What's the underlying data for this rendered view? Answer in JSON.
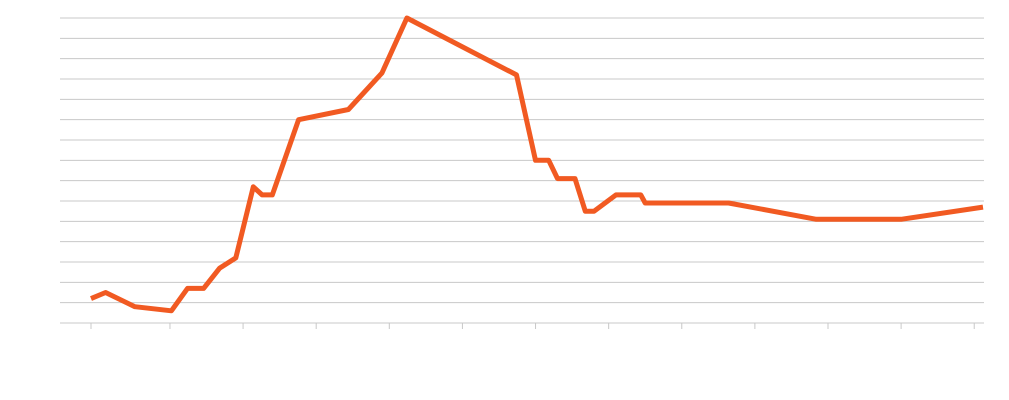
{
  "chart_data": {
    "type": "line",
    "title": "",
    "xlabel": "",
    "ylabel": "",
    "grid": true,
    "legend": "none",
    "xlim": [
      0,
      61
    ],
    "ylim": [
      0,
      15
    ],
    "y_gridline_count": 15,
    "x_tick_positions": [
      0,
      5.4,
      10.4,
      15.4,
      20.4,
      25.4,
      30.4,
      35.4,
      40.4,
      45.4,
      50.4,
      55.4,
      60.4
    ],
    "series": [
      {
        "color": "#f15a22",
        "x": [
          0,
          1,
          3,
          5.5,
          6.6,
          7.7,
          8.8,
          9.9,
          11.1,
          11.7,
          12.4,
          14.2,
          17.6,
          19.9,
          21.6,
          29.1,
          30.4,
          31.3,
          31.9,
          33.1,
          33.8,
          34.4,
          35.9,
          37.6,
          37.9,
          43.6,
          49.6,
          55.4,
          61
        ],
        "y": [
          1.2,
          1.5,
          0.8,
          0.6,
          1.7,
          1.7,
          2.7,
          3.2,
          6.7,
          6.3,
          6.3,
          10.0,
          10.5,
          12.3,
          15.0,
          12.2,
          8.0,
          8.0,
          7.1,
          7.1,
          5.5,
          5.5,
          6.3,
          6.3,
          5.9,
          5.9,
          5.1,
          5.1,
          5.7
        ]
      }
    ]
  }
}
